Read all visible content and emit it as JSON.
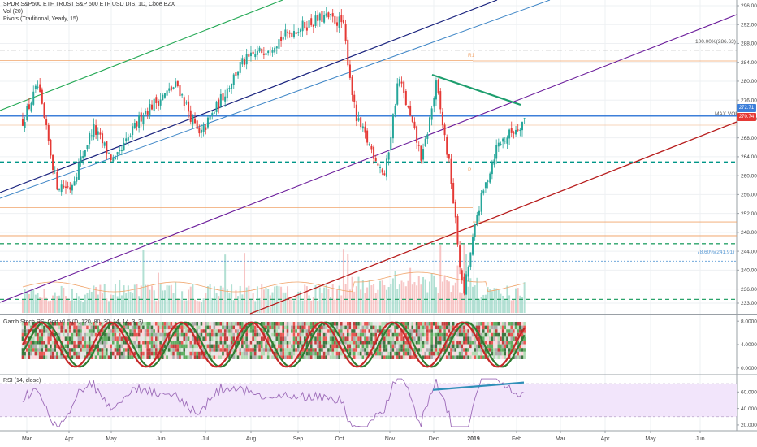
{
  "legend": {
    "symbol_line": "SPDR S&P500 ETF TRUST S&P 500 ETF USD DIS, 1D, Cboe BZX",
    "vol_line": "Vol (20)",
    "pivots_line": "Pivots (Traditional, Yearly, 15)",
    "gamb_line": "Gamb Stoch RSI Grid v1.5 (D, 120, 80, 30, 14, 14, 3, 3)",
    "rsi_line": "RSI (14, close)"
  },
  "annotations": {
    "fib_100": "100.00%(286.63)",
    "fib_786": "78.60%(241.91)",
    "pivot_r1": "R1",
    "pivot_p": "P",
    "max_vol": "MAX VOL"
  },
  "price_tags": {
    "upper": "272.71",
    "lower": "270.74"
  },
  "colors": {
    "up": "#26a69a",
    "down": "#e53935",
    "blue_line": "#3d7fd9",
    "teal_dash": "#009688",
    "pivot_orange": "#f0a46a",
    "fib_grey": "#555555",
    "fib_blue": "#5b9bd5",
    "green_channel": "#23a854",
    "navy_channel": "#1a237e",
    "blue_channel": "#3d85c6",
    "purple_channel": "#6a1b9a",
    "red_channel": "#b71c1c",
    "rsi_band": "#f2e5fb",
    "rsi_line": "#9c6ab8",
    "rsi_trend": "#2f8fb8",
    "tag_upper": "#3d7fd9",
    "tag_lower": "#e53935"
  },
  "chart_data": [
    {
      "type": "candlestick",
      "title": "SPDR S&P500 ETF TRUST S&P 500 ETF USD DIS, 1D, Cboe BZX",
      "x_tick_labels": [
        "Mar",
        "Apr",
        "May",
        "Jun",
        "Jul",
        "Aug",
        "Sep",
        "Oct",
        "Nov",
        "Dec",
        "2019",
        "Feb",
        "Mar",
        "Apr",
        "May",
        "Jun"
      ],
      "y_tick_labels": [
        "296.00",
        "292.00",
        "288.00",
        "284.00",
        "280.00",
        "276.00",
        "272.00",
        "268.00",
        "264.00",
        "260.00",
        "256.00",
        "252.00",
        "248.00",
        "244.00",
        "240.00",
        "236.00",
        "233.00"
      ],
      "y_range": [
        232,
        297
      ],
      "price_path_anchors": [
        {
          "date": "2018-02-26",
          "close": 271.6
        },
        {
          "date": "2018-03-09",
          "close": 278.9
        },
        {
          "date": "2018-03-23",
          "close": 258.1
        },
        {
          "date": "2018-04-02",
          "close": 257.5
        },
        {
          "date": "2018-04-18",
          "close": 270.2
        },
        {
          "date": "2018-05-03",
          "close": 262.6
        },
        {
          "date": "2018-05-21",
          "close": 273.4
        },
        {
          "date": "2018-06-12",
          "close": 279.3
        },
        {
          "date": "2018-06-27",
          "close": 268.2
        },
        {
          "date": "2018-07-25",
          "close": 283.6
        },
        {
          "date": "2018-08-29",
          "close": 290.8
        },
        {
          "date": "2018-09-20",
          "close": 293.6
        },
        {
          "date": "2018-10-03",
          "close": 292.4
        },
        {
          "date": "2018-10-11",
          "close": 272.2
        },
        {
          "date": "2018-10-29",
          "close": 259.9
        },
        {
          "date": "2018-11-07",
          "close": 281.0
        },
        {
          "date": "2018-11-23",
          "close": 263.3
        },
        {
          "date": "2018-12-03",
          "close": 279.3
        },
        {
          "date": "2018-12-14",
          "close": 260.5
        },
        {
          "date": "2018-12-24",
          "close": 234.3
        },
        {
          "date": "2019-01-04",
          "close": 252.4
        },
        {
          "date": "2019-01-18",
          "close": 266.5
        },
        {
          "date": "2019-02-01",
          "close": 270.1
        },
        {
          "date": "2019-02-06",
          "close": 271.9
        }
      ],
      "horizontal_levels": [
        {
          "label": "blue resistance",
          "value": 272.7
        },
        {
          "label": "MAX VOL",
          "value": 270.7
        },
        {
          "label": "teal dashed",
          "value": 262.9
        },
        {
          "label": "teal dashed",
          "value": 245.6
        },
        {
          "label": "teal dashed",
          "value": 233.8
        },
        {
          "label": "100.00%(286.63)",
          "value": 286.6
        },
        {
          "label": "78.60%(241.91)",
          "value": 241.9
        },
        {
          "label": "R1",
          "value": 284.3
        },
        {
          "label": "P",
          "value": 258.0
        },
        {
          "label": "pivot",
          "value": 250.2
        }
      ]
    },
    {
      "type": "bar",
      "title": "Vol (20)",
      "note": "volume histogram overlaid on lower price pane"
    },
    {
      "type": "heatmap",
      "title": "Gamb Stoch RSI Grid v1.5 (D, 120, 80, 30, 14, 14, 3, 3)",
      "y_tick_labels": [
        "8.0000",
        "4.0000",
        "0.0000"
      ],
      "y_range": [
        -1,
        9
      ]
    },
    {
      "type": "line",
      "title": "RSI (14, close)",
      "y_tick_labels": [
        "60.0000",
        "40.0000",
        "20.0000"
      ],
      "y_range": [
        15,
        80
      ],
      "band": [
        30,
        70
      ]
    }
  ]
}
